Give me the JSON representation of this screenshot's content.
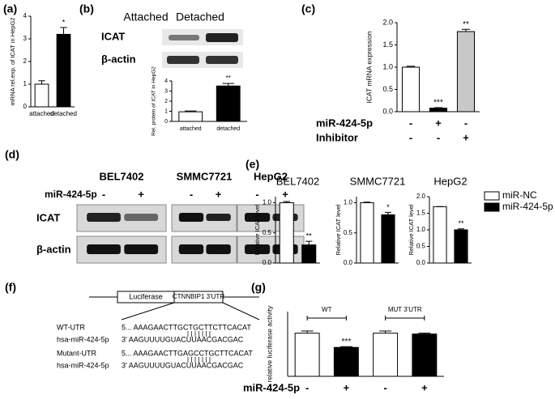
{
  "figure": {
    "labels": [
      "(a)",
      "(b)",
      "(c)",
      "(d)",
      "(e)",
      "(f)",
      "(g)"
    ]
  },
  "chart_data": [
    {
      "type": "bar",
      "y_label": "mRNA rel.exp. of ICAT in HepG2",
      "categories": [
        "attached",
        "detached"
      ],
      "values": [
        1.0,
        3.2
      ],
      "errors": [
        0.15,
        0.3
      ],
      "colors": [
        "#ffffff",
        "#000000"
      ],
      "annotations": [
        null,
        "*"
      ],
      "ylim": [
        0,
        4
      ],
      "yticks": [
        0,
        1,
        2,
        3,
        4
      ]
    },
    {
      "type": "bar",
      "y_label": "Rel. protein of ICAT in HepG2",
      "categories": [
        "attached",
        "detached"
      ],
      "values": [
        0.95,
        3.5
      ],
      "errors": [
        0.08,
        0.25
      ],
      "colors": [
        "#ffffff",
        "#000000"
      ],
      "annotations": [
        null,
        "**"
      ],
      "ylim": [
        0,
        4
      ],
      "yticks": [
        0,
        1,
        2,
        3,
        4
      ]
    },
    {
      "type": "bar",
      "y_label": "ICAT mRNA expression",
      "categories": [
        null,
        null,
        null
      ],
      "values": [
        1.0,
        0.08,
        1.8
      ],
      "errors": [
        0.02,
        0.01,
        0.05
      ],
      "colors": [
        "#ffffff",
        "#000000",
        "#c8c8c8"
      ],
      "annotations": [
        null,
        "***",
        "**"
      ],
      "ylim": [
        0,
        2
      ],
      "yticks": [
        {
          "value": 0,
          "label": "0.0"
        },
        {
          "value": 0.5,
          "label": "0.5"
        },
        {
          "value": 1,
          "label": "1.0"
        },
        {
          "value": 1.5,
          "label": "1.5"
        },
        {
          "value": 2,
          "label": "2.0"
        }
      ],
      "conditions": [
        {
          "label": "miR-424-5p",
          "values": [
            "-",
            "+",
            "-"
          ]
        },
        {
          "label": "Inhibitor",
          "values": [
            "-",
            "-",
            "+"
          ]
        }
      ]
    },
    {
      "type": "bar",
      "title": "BEL7402",
      "y_label": "Relative ICAT level",
      "categories": [
        null,
        null
      ],
      "values": [
        1.0,
        0.3
      ],
      "errors": [
        0.02,
        0.06
      ],
      "colors": [
        "#ffffff",
        "#000000"
      ],
      "annotations": [
        null,
        "**"
      ],
      "ylim": [
        0,
        1.1
      ],
      "yticks": [
        {
          "value": 0,
          "label": "0.0"
        },
        {
          "value": 0.5,
          "label": "0.5"
        },
        {
          "value": 1,
          "label": "1.0"
        }
      ]
    },
    {
      "type": "bar",
      "title": "SMMC7721",
      "y_label": "Relative ICAT level",
      "categories": [
        null,
        null
      ],
      "values": [
        1.0,
        0.8
      ],
      "errors": [
        0.01,
        0.04
      ],
      "colors": [
        "#ffffff",
        "#000000"
      ],
      "annotations": [
        null,
        "*"
      ],
      "ylim": [
        0,
        1.1
      ],
      "yticks": [
        {
          "value": 0,
          "label": "0.0"
        },
        {
          "value": 0.5,
          "label": "0.5"
        },
        {
          "value": 1,
          "label": "1.0"
        }
      ]
    },
    {
      "type": "bar",
      "title": "HepG2",
      "y_label": "Relative ICAT level",
      "categories": [
        null,
        null
      ],
      "values": [
        1.7,
        1.0
      ],
      "errors": [
        0.0,
        0.03
      ],
      "colors": [
        "#ffffff",
        "#000000"
      ],
      "annotations": [
        null,
        "**"
      ],
      "ylim": [
        0,
        2
      ],
      "yticks": [
        {
          "value": 0,
          "label": "0.0"
        },
        {
          "value": 0.5,
          "label": "0.5"
        },
        {
          "value": 1,
          "label": "1.0"
        },
        {
          "value": 1.5,
          "label": "1.5"
        },
        {
          "value": 2,
          "label": "2.0"
        }
      ],
      "legend": [
        {
          "name": "miR-NC",
          "color": "#ffffff"
        },
        {
          "name": "miR-424-5p",
          "color": "#000000"
        }
      ]
    },
    {
      "type": "bar",
      "y_label": "relative luciferase activity",
      "categories": [
        null,
        null,
        null,
        null
      ],
      "values": [
        1.0,
        0.67,
        1.0,
        0.98
      ],
      "errors": [
        0.05,
        0.02,
        0.05,
        0.02
      ],
      "colors": [
        "#ffffff",
        "#000000",
        "#ffffff",
        "#000000"
      ],
      "annotations": [
        null,
        "***",
        null,
        null
      ],
      "ylim": [
        0,
        1.5
      ],
      "groups": [
        "WT",
        "MUT 3'UTR"
      ],
      "conditions": [
        {
          "label": "miR-424-5p",
          "values": [
            "-",
            "+",
            "-",
            "+"
          ]
        }
      ]
    }
  ],
  "blot_b": {
    "columns": [
      "Attached",
      "Detached"
    ],
    "rows": [
      "ICAT",
      "β-actin"
    ]
  },
  "blot_d": {
    "cell_lines": [
      "BEL7402",
      "SMMC7721",
      "HepG2"
    ],
    "treatment": "miR-424-5p",
    "signs": [
      [
        "-",
        "+"
      ],
      [
        "-",
        "+"
      ],
      [
        "-",
        "+"
      ]
    ],
    "rows": [
      "ICAT",
      "β-actin"
    ]
  },
  "diagram_f": {
    "luciferase": "Luciferase",
    "utr": "CTNNBIP1 3'UTR",
    "rows": [
      {
        "label": "WT-UTR",
        "seq": "5... AAAGAACTTGCTGCTTCTTCACAT"
      },
      {
        "label": "hsa-miR-424-5p",
        "seq": "3'  AAGUUUUGUACUUAACGACGAC"
      },
      {
        "label": "Mutant-UTR",
        "seq": "5... AAAGAACTTGAGCCTGCTTCACAT"
      },
      {
        "label": "hsa-miR-424-5p",
        "seq": "3'  AAGUUUUGUACUUAACGACGAC"
      }
    ]
  }
}
